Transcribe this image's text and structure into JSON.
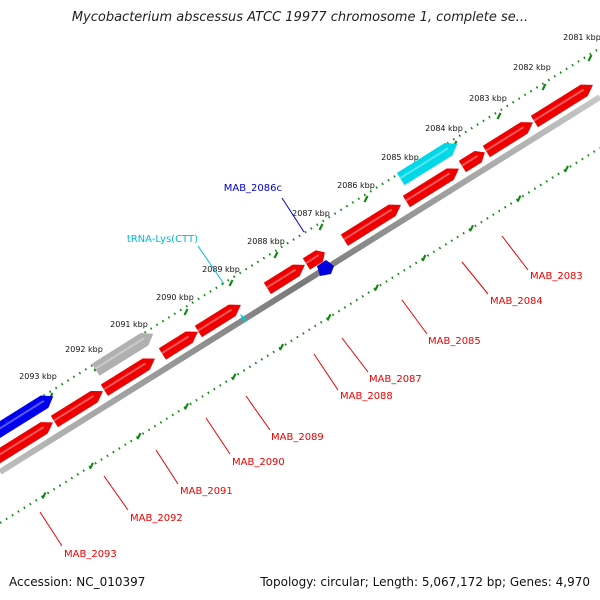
{
  "title": "Mycobacterium abscessus ATCC 19977 chromosome 1, complete se...",
  "footer": {
    "accession": "Accession: NC_010397",
    "summary": "Topology: circular; Length: 5,067,172 bp; Genes: 4,970"
  },
  "colors": {
    "cds": "#ee0000",
    "trna": "#00d8e8",
    "pseudo": "#b0b0b0",
    "misc": "#0000ee",
    "backbone": "#808080",
    "ruler": "#118811"
  },
  "ruler_labels": [
    "2081 kbp",
    "2082 kbp",
    "2083 kbp",
    "2084 kbp",
    "2085 kbp",
    "2086 kbp",
    "2087 kbp",
    "2088 kbp",
    "2089 kbp",
    "2090 kbp",
    "2091 kbp",
    "2092 kbp",
    "2093 kbp"
  ],
  "features": [
    {
      "name": "MAB_2083",
      "color": "#ee0000"
    },
    {
      "name": "MAB_2084",
      "color": "#ee0000"
    },
    {
      "name": "MAB_2085",
      "color": "#ee0000"
    },
    {
      "name": "MAB_2086c",
      "color": "#0000cc"
    },
    {
      "name": "tRNA-Lys(CTT)",
      "color": "#00bcd8"
    },
    {
      "name": "MAB_2087",
      "color": "#ee0000"
    },
    {
      "name": "MAB_2088",
      "color": "#ee0000"
    },
    {
      "name": "MAB_2089",
      "color": "#ee0000"
    },
    {
      "name": "MAB_2090",
      "color": "#ee0000"
    },
    {
      "name": "MAB_2091",
      "color": "#ee0000"
    },
    {
      "name": "MAB_2092",
      "color": "#ee0000"
    },
    {
      "name": "MAB_2093",
      "color": "#ee0000"
    }
  ]
}
